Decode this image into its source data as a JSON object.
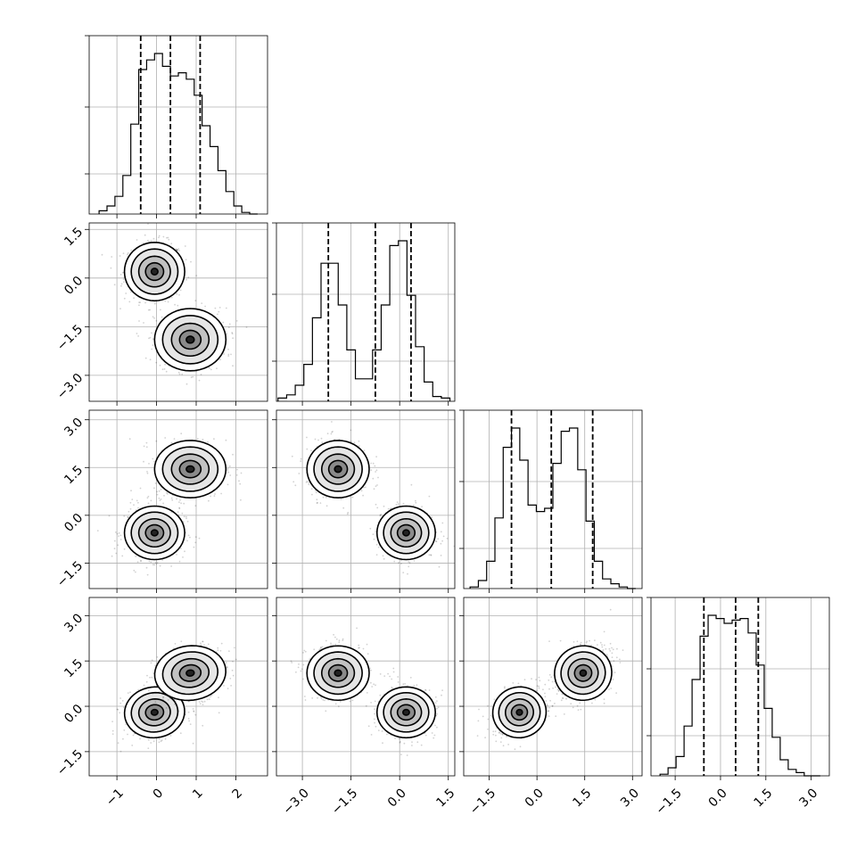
{
  "chart_data": {
    "type": "corner",
    "dims": 4,
    "colors": {
      "ink": "#000000",
      "grid": "#b0b0b0",
      "background": "#ffffff"
    },
    "grid": true,
    "legend": "none",
    "quantiles": [
      0.16,
      0.5,
      0.84
    ],
    "axes": [
      {
        "range": [
          -1.7,
          2.8
        ],
        "ticks": [
          -1,
          0,
          1,
          2
        ],
        "tick_labels": [
          "−1",
          "0",
          "1",
          "2"
        ]
      },
      {
        "range": [
          -3.8,
          1.7
        ],
        "ticks": [
          -3.0,
          -1.5,
          0.0,
          1.5
        ],
        "tick_labels": [
          "−3.0",
          "−1.5",
          "0.0",
          "1.5"
        ]
      },
      {
        "range": [
          -2.3,
          3.3
        ],
        "ticks": [
          -1.5,
          0.0,
          1.5,
          3.0
        ],
        "tick_labels": [
          "−1.5",
          "0.0",
          "1.5",
          "3.0"
        ]
      },
      {
        "range": [
          -2.3,
          3.6
        ],
        "ticks": [
          -1.5,
          0.0,
          1.5,
          3.0
        ],
        "tick_labels": [
          "−1.5",
          "0.0",
          "1.5",
          "3.0"
        ]
      }
    ],
    "modes": [
      {
        "weight": 0.5,
        "mean": [
          -0.05,
          0.2,
          -0.55,
          -0.2
        ],
        "sd": [
          0.38,
          0.45,
          0.42,
          0.42
        ]
      },
      {
        "weight": 0.5,
        "mean": [
          0.85,
          -1.9,
          1.45,
          1.1
        ],
        "sd": [
          0.45,
          0.48,
          0.45,
          0.45
        ]
      }
    ],
    "correlations": {
      "0-1": 0.0,
      "0-2": 0.0,
      "0-3": 0.2,
      "1-2": 0.0,
      "1-3": 0.0,
      "2-3": 0.3
    },
    "histograms": [
      {
        "dim": 0,
        "bins": 20,
        "range": [
          -1.45,
          2.55
        ],
        "counts": [
          0.02,
          0.05,
          0.11,
          0.24,
          0.56,
          0.9,
          0.96,
          1.0,
          0.92,
          0.86,
          0.88,
          0.84,
          0.74,
          0.55,
          0.42,
          0.27,
          0.14,
          0.05,
          0.01,
          0.0
        ],
        "quantile_values": [
          -0.4,
          0.35,
          1.1
        ]
      },
      {
        "dim": 1,
        "bins": 20,
        "range": [
          -3.75,
          1.55
        ],
        "counts": [
          0.02,
          0.04,
          0.1,
          0.23,
          0.52,
          0.86,
          0.86,
          0.6,
          0.32,
          0.14,
          0.14,
          0.32,
          0.6,
          0.97,
          1.0,
          0.66,
          0.34,
          0.12,
          0.03,
          0.02
        ],
        "quantile_values": [
          -2.2,
          -0.75,
          0.35
        ]
      },
      {
        "dim": 2,
        "bins": 20,
        "range": [
          -2.1,
          3.1
        ],
        "counts": [
          0.01,
          0.05,
          0.17,
          0.44,
          0.88,
          1.0,
          0.8,
          0.52,
          0.48,
          0.5,
          0.78,
          0.98,
          1.0,
          0.74,
          0.42,
          0.17,
          0.06,
          0.03,
          0.01,
          0.0
        ],
        "quantile_values": [
          -0.8,
          0.45,
          1.75
        ]
      },
      {
        "dim": 3,
        "bins": 20,
        "range": [
          -2.0,
          3.3
        ],
        "counts": [
          0.01,
          0.05,
          0.12,
          0.31,
          0.6,
          0.87,
          1.0,
          0.98,
          0.95,
          0.97,
          0.98,
          0.89,
          0.69,
          0.42,
          0.24,
          0.1,
          0.04,
          0.02,
          0.0,
          0.0
        ],
        "quantile_values": [
          -0.55,
          0.5,
          1.25
        ]
      }
    ]
  }
}
